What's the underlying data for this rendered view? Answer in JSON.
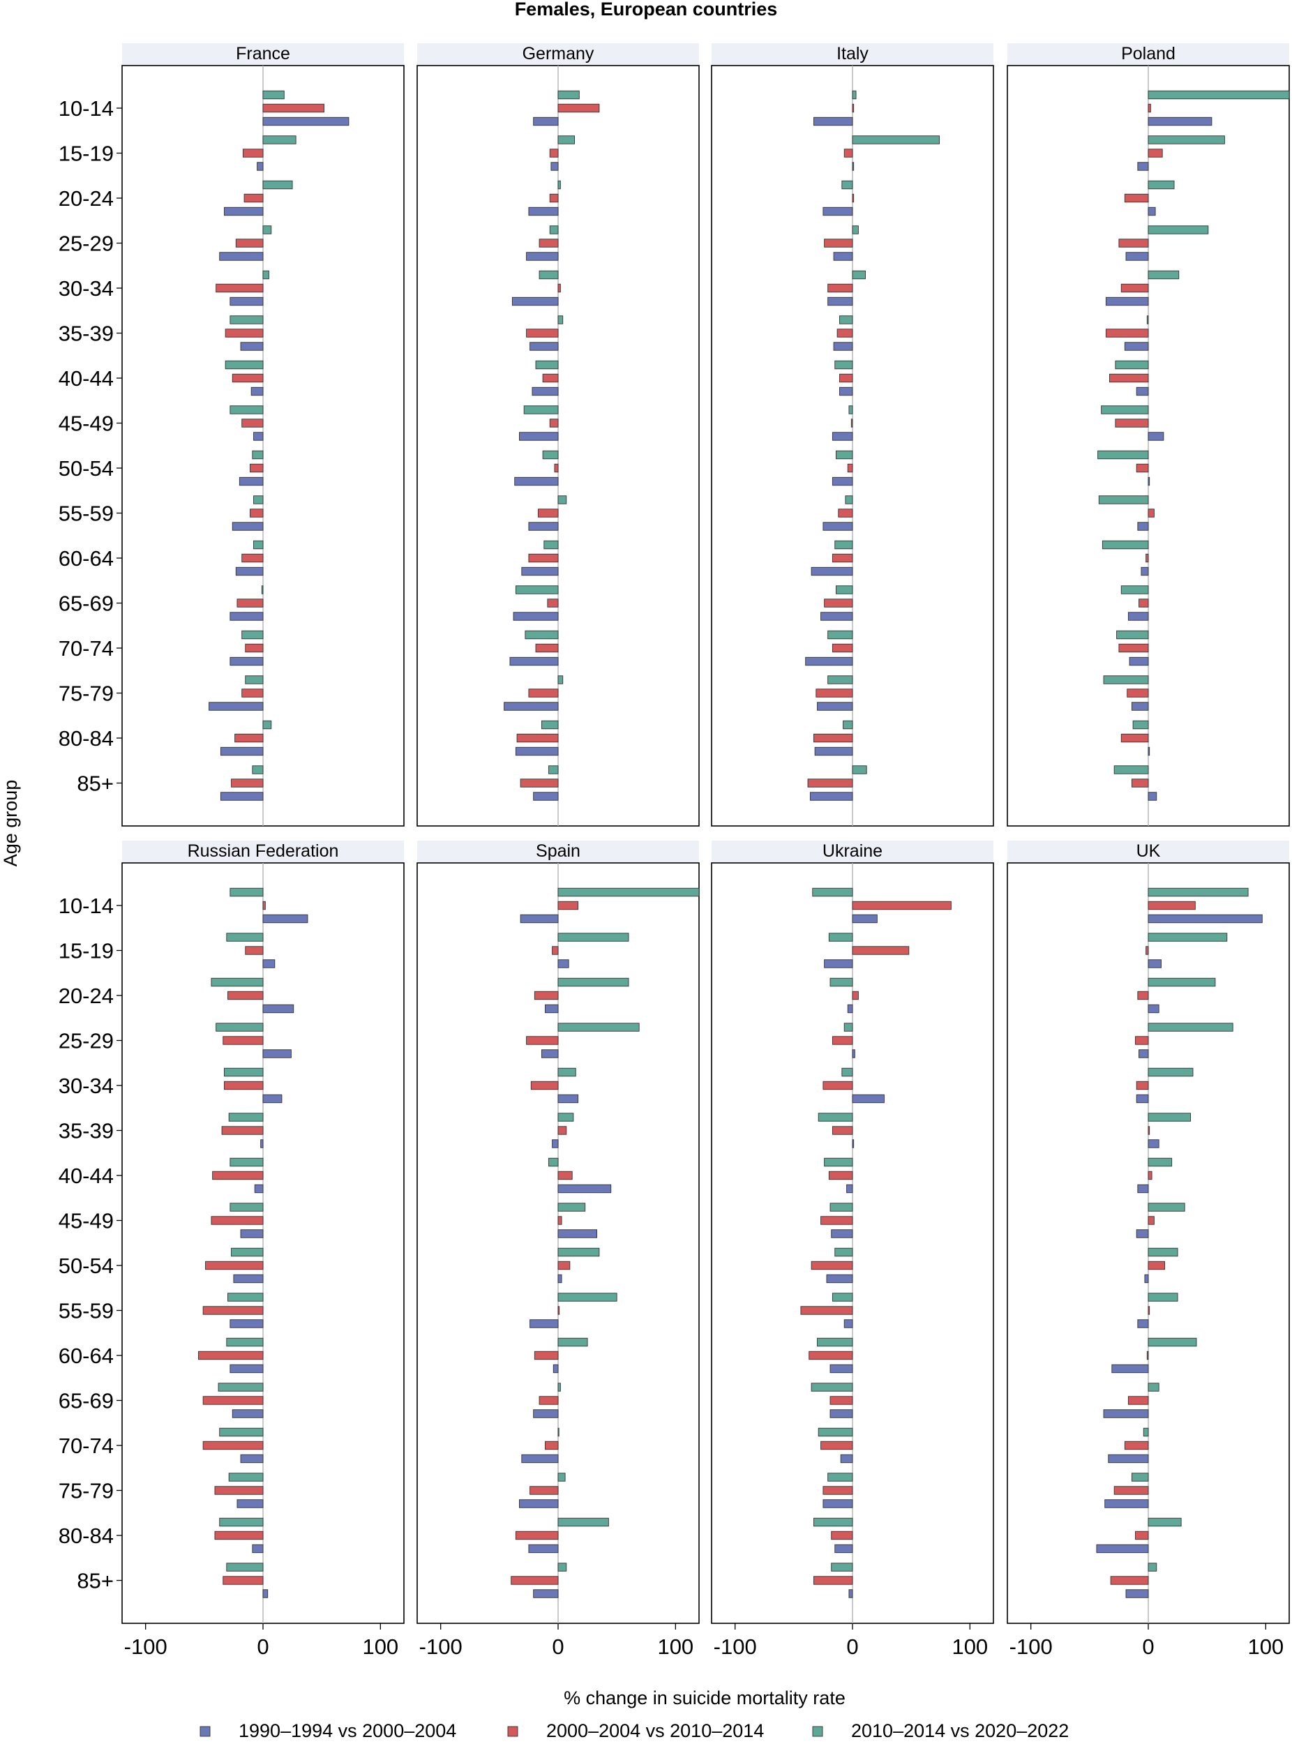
{
  "chart_data": {
    "type": "bar",
    "title": "Females, European countries",
    "xlabel": "% change in suicide mortality rate",
    "ylabel": "Age group",
    "xlim": [
      -120,
      120
    ],
    "xticks": [
      -100,
      0,
      100
    ],
    "xtick_labels": [
      "-100",
      "0",
      "100"
    ],
    "categories": [
      "10-14",
      "15-19",
      "20-24",
      "25-29",
      "30-34",
      "35-39",
      "40-44",
      "45-49",
      "50-54",
      "55-59",
      "60-64",
      "65-69",
      "70-74",
      "75-79",
      "80-84",
      "85+"
    ],
    "series_meta": [
      {
        "name": "1990–1994 vs 2000–2004",
        "color": "#6b78b8"
      },
      {
        "name": "2000–2004 vs 2010–2014",
        "color": "#d4595a"
      },
      {
        "name": "2010–2014 vs 2020–2022",
        "color": "#5fa898"
      }
    ],
    "panels": [
      {
        "name": "France",
        "series": [
          [
            73,
            -5,
            -33,
            -37,
            -28,
            -19,
            -10,
            -8,
            -20,
            -26,
            -23,
            -28,
            -28,
            -46,
            -36,
            -36
          ],
          [
            52,
            -17,
            -16,
            -23,
            -40,
            -32,
            -26,
            -18,
            -11,
            -11,
            -18,
            -22,
            -15,
            -18,
            -24,
            -27
          ],
          [
            18,
            28,
            25,
            7,
            5,
            -28,
            -32,
            -28,
            -9,
            -8,
            -8,
            -1,
            -18,
            -15,
            7,
            -9
          ]
        ]
      },
      {
        "name": "Germany",
        "series": [
          [
            -21,
            -6,
            -25,
            -27,
            -39,
            -24,
            -22,
            -33,
            -37,
            -25,
            -31,
            -38,
            -41,
            -46,
            -36,
            -21
          ],
          [
            35,
            -7,
            -7,
            -16,
            2,
            -27,
            -13,
            -7,
            -3,
            -17,
            -25,
            -9,
            -19,
            -25,
            -35,
            -32
          ],
          [
            18,
            14,
            2,
            -7,
            -16,
            4,
            -19,
            -29,
            -13,
            7,
            -12,
            -36,
            -28,
            4,
            -14,
            -8
          ]
        ]
      },
      {
        "name": "Italy",
        "series": [
          [
            -33,
            1,
            -25,
            -16,
            -21,
            -16,
            -11,
            -17,
            -17,
            -25,
            -35,
            -27,
            -40,
            -30,
            -32,
            -36
          ],
          [
            1,
            -7,
            1,
            -24,
            -21,
            -13,
            -11,
            -1,
            -4,
            -12,
            -17,
            -24,
            -17,
            -31,
            -33,
            -38
          ],
          [
            3,
            74,
            -9,
            5,
            11,
            -11,
            -15,
            -3,
            -14,
            -6,
            -15,
            -14,
            -21,
            -21,
            -8,
            12
          ]
        ]
      },
      {
        "name": "Poland",
        "series": [
          [
            54,
            -9,
            6,
            -19,
            -36,
            -20,
            -10,
            13,
            1,
            -9,
            -6,
            -17,
            -16,
            -14,
            1,
            7
          ],
          [
            2,
            12,
            -20,
            -25,
            -23,
            -36,
            -33,
            -28,
            -10,
            5,
            -2,
            -8,
            -25,
            -18,
            -23,
            -14
          ],
          [
            120,
            65,
            22,
            51,
            26,
            -1,
            -28,
            -40,
            -43,
            -42,
            -39,
            -23,
            -27,
            -38,
            -13,
            -29
          ]
        ]
      },
      {
        "name": "Russian Federation",
        "series": [
          [
            38,
            10,
            26,
            24,
            16,
            -2,
            -7,
            -19,
            -25,
            -28,
            -28,
            -26,
            -19,
            -22,
            -9,
            4
          ],
          [
            2,
            -15,
            -30,
            -34,
            -33,
            -35,
            -43,
            -44,
            -49,
            -51,
            -55,
            -51,
            -51,
            -41,
            -41,
            -34
          ],
          [
            -28,
            -31,
            -44,
            -40,
            -33,
            -29,
            -28,
            -28,
            -27,
            -30,
            -31,
            -38,
            -37,
            -29,
            -37,
            -31
          ]
        ]
      },
      {
        "name": "Spain",
        "series": [
          [
            -32,
            9,
            -11,
            -14,
            17,
            -5,
            45,
            33,
            3,
            -24,
            -4,
            -21,
            -31,
            -33,
            -25,
            -21
          ],
          [
            17,
            -5,
            -20,
            -27,
            -23,
            7,
            12,
            3,
            10,
            1,
            -20,
            -16,
            -11,
            -24,
            -36,
            -40
          ],
          [
            120,
            60,
            60,
            69,
            15,
            13,
            -8,
            23,
            35,
            50,
            25,
            2,
            0,
            6,
            43,
            7
          ]
        ]
      },
      {
        "name": "Ukraine",
        "series": [
          [
            21,
            -24,
            -4,
            2,
            27,
            1,
            -5,
            -18,
            -22,
            -7,
            -19,
            -19,
            -10,
            -25,
            -15,
            -3
          ],
          [
            84,
            48,
            5,
            -17,
            -25,
            -17,
            -20,
            -27,
            -35,
            -44,
            -37,
            -19,
            -27,
            -25,
            -18,
            -33
          ],
          [
            -34,
            -20,
            -19,
            -7,
            -9,
            -29,
            -24,
            -19,
            -15,
            -17,
            -30,
            -35,
            -29,
            -21,
            -33,
            -18
          ]
        ]
      },
      {
        "name": "UK",
        "series": [
          [
            97,
            11,
            9,
            -8,
            -10,
            9,
            -9,
            -10,
            -3,
            -9,
            -31,
            -38,
            -34,
            -37,
            -44,
            -19
          ],
          [
            40,
            -2,
            -9,
            -11,
            -10,
            1,
            3,
            5,
            14,
            1,
            -1,
            -17,
            -20,
            -29,
            -11,
            -32
          ],
          [
            85,
            67,
            57,
            72,
            38,
            36,
            20,
            31,
            25,
            25,
            41,
            9,
            -4,
            -14,
            28,
            7
          ]
        ]
      }
    ]
  }
}
